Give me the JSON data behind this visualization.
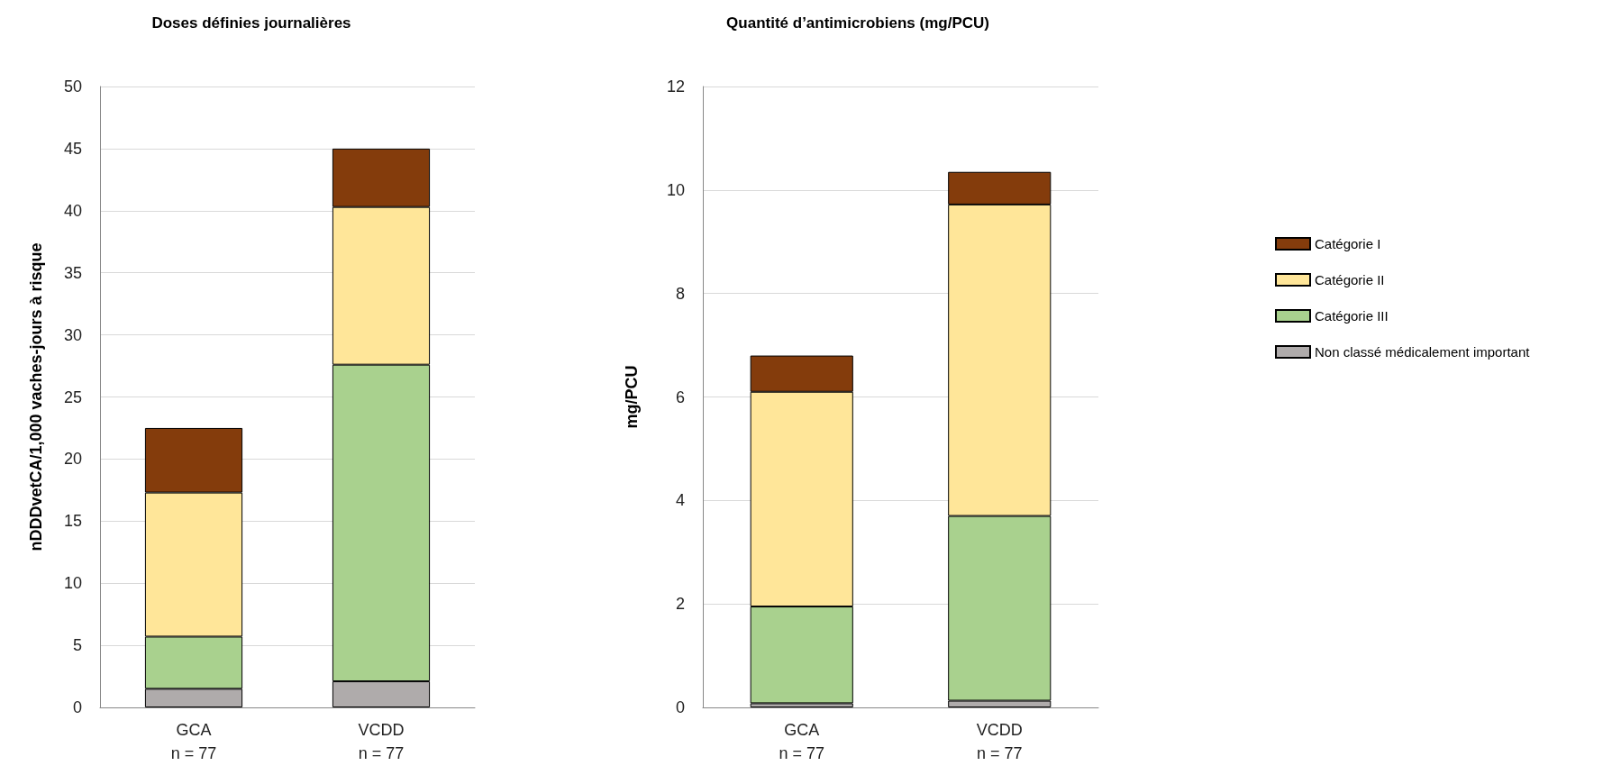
{
  "chart_data": [
    {
      "type": "bar",
      "title": "Doses définies journalières",
      "ylabel": "nDDDvetCA/1,000 vaches-jours à risque",
      "categories": [
        "GCA\nn = 77",
        "VCDD\nn = 77"
      ],
      "stacked": true,
      "ylim": [
        0,
        50
      ],
      "yticks": [
        0,
        5,
        10,
        15,
        20,
        25,
        30,
        35,
        40,
        45,
        50
      ],
      "grid": "y",
      "series": [
        {
          "color": "#afabab",
          "values": [
            1.5,
            2.1
          ]
        },
        {
          "color": "#a9d18e",
          "values": [
            4.2,
            25.5
          ]
        },
        {
          "color": "#ffe699",
          "values": [
            11.6,
            12.7
          ]
        },
        {
          "color": "#843c0c",
          "values": [
            5.2,
            4.7
          ]
        }
      ]
    },
    {
      "type": "bar",
      "title": "Quantité d’antimicrobiens (mg/PCU)",
      "ylabel": "mg/PCU",
      "categories": [
        "GCA\nn = 77",
        "VCDD\nn = 77"
      ],
      "stacked": true,
      "ylim": [
        0,
        12
      ],
      "yticks": [
        0,
        2,
        4,
        6,
        8,
        10,
        12
      ],
      "grid": "y",
      "legend": "right",
      "series": [
        {
          "name": "Non classé médicalement important",
          "color": "#afabab",
          "values": [
            0.08,
            0.13
          ]
        },
        {
          "name": "Catégorie III",
          "color": "#a9d18e",
          "values": [
            1.87,
            3.57
          ]
        },
        {
          "name": "Catégorie II",
          "color": "#ffe699",
          "values": [
            4.15,
            6.02
          ]
        },
        {
          "name": "Catégorie I",
          "color": "#843c0c",
          "values": [
            0.7,
            0.63
          ]
        }
      ]
    }
  ]
}
